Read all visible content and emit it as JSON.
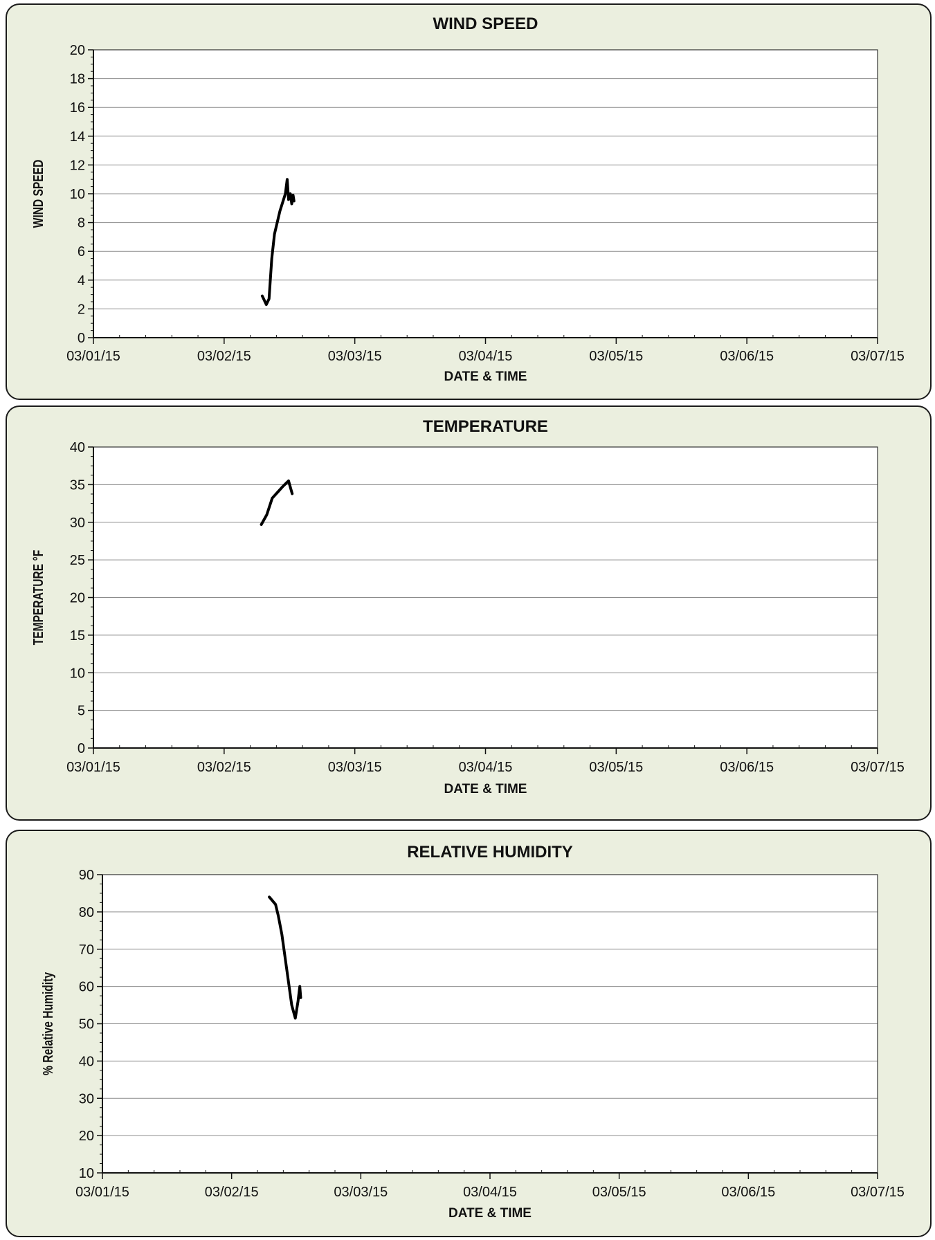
{
  "chart_data": [
    {
      "type": "line",
      "title": "WIND SPEED",
      "xlabel": "DATE & TIME",
      "ylabel": "WIND SPEED",
      "x_ticks": [
        "03/01/15",
        "03/02/15",
        "03/03/15",
        "03/04/15",
        "03/05/15",
        "03/06/15",
        "03/07/15"
      ],
      "xlim": [
        "03/01/15",
        "03/07/15"
      ],
      "ylim": [
        0,
        20
      ],
      "y_ticks": [
        0,
        2,
        4,
        6,
        8,
        10,
        12,
        14,
        16,
        18,
        20
      ],
      "grid": "horizontal",
      "series": [
        {
          "color": "#000000",
          "points": [
            {
              "x": "2015-03-02 07:00",
              "y": 2.9
            },
            {
              "x": "2015-03-02 07:45",
              "y": 2.3
            },
            {
              "x": "2015-03-02 08:15",
              "y": 2.7
            },
            {
              "x": "2015-03-02 08:45",
              "y": 5.5
            },
            {
              "x": "2015-03-02 09:15",
              "y": 7.2
            },
            {
              "x": "2015-03-02 10:15",
              "y": 8.8
            },
            {
              "x": "2015-03-02 11:15",
              "y": 10.0
            },
            {
              "x": "2015-03-02 11:35",
              "y": 11.0
            },
            {
              "x": "2015-03-02 11:50",
              "y": 9.6
            },
            {
              "x": "2015-03-02 12:10",
              "y": 10.0
            },
            {
              "x": "2015-03-02 12:25",
              "y": 9.3
            },
            {
              "x": "2015-03-02 12:40",
              "y": 9.9
            },
            {
              "x": "2015-03-02 12:50",
              "y": 9.5
            }
          ]
        }
      ]
    },
    {
      "type": "line",
      "title": "TEMPERATURE",
      "xlabel": "DATE & TIME",
      "ylabel": "TEMPERATURE °F",
      "x_ticks": [
        "03/01/15",
        "03/02/15",
        "03/03/15",
        "03/04/15",
        "03/05/15",
        "03/06/15",
        "03/07/15"
      ],
      "xlim": [
        "03/01/15",
        "03/07/15"
      ],
      "ylim": [
        0,
        40
      ],
      "y_ticks": [
        0,
        5,
        10,
        15,
        20,
        25,
        30,
        35,
        40
      ],
      "grid": "horizontal",
      "series": [
        {
          "color": "#000000",
          "points": [
            {
              "x": "2015-03-02 06:50",
              "y": 29.7
            },
            {
              "x": "2015-03-02 07:50",
              "y": 31.0
            },
            {
              "x": "2015-03-02 08:50",
              "y": 33.2
            },
            {
              "x": "2015-03-02 09:50",
              "y": 34.0
            },
            {
              "x": "2015-03-02 10:50",
              "y": 34.8
            },
            {
              "x": "2015-03-02 11:50",
              "y": 35.5
            },
            {
              "x": "2015-03-02 12:30",
              "y": 33.8
            }
          ]
        }
      ]
    },
    {
      "type": "line",
      "title": "RELATIVE HUMIDITY",
      "xlabel": "DATE & TIME",
      "ylabel": "% Relative Humidity",
      "x_ticks": [
        "03/01/15",
        "03/02/15",
        "03/03/15",
        "03/04/15",
        "03/05/15",
        "03/06/15",
        "03/07/15"
      ],
      "xlim": [
        "03/01/15",
        "03/07/15"
      ],
      "ylim": [
        10,
        90
      ],
      "y_ticks": [
        10,
        20,
        30,
        40,
        50,
        60,
        70,
        80,
        90
      ],
      "grid": "horizontal",
      "series": [
        {
          "color": "#000000",
          "points": [
            {
              "x": "2015-03-02 07:00",
              "y": 84.0
            },
            {
              "x": "2015-03-02 08:10",
              "y": 82.0
            },
            {
              "x": "2015-03-02 08:40",
              "y": 79.0
            },
            {
              "x": "2015-03-02 09:20",
              "y": 74.0
            },
            {
              "x": "2015-03-02 11:10",
              "y": 55.0
            },
            {
              "x": "2015-03-02 11:50",
              "y": 51.5
            },
            {
              "x": "2015-03-02 12:20",
              "y": 56.0
            },
            {
              "x": "2015-03-02 12:40",
              "y": 60.0
            },
            {
              "x": "2015-03-02 12:50",
              "y": 57.0
            }
          ]
        }
      ]
    }
  ]
}
